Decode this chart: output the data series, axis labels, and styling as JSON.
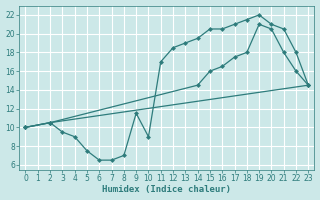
{
  "xlabel": "Humidex (Indice chaleur)",
  "bg_color": "#cce8e8",
  "line_color": "#2e7c7c",
  "grid_color": "#ffffff",
  "xlim": [
    -0.5,
    23.5
  ],
  "ylim": [
    5.5,
    23.0
  ],
  "xticks": [
    0,
    1,
    2,
    3,
    4,
    5,
    6,
    7,
    8,
    9,
    10,
    11,
    12,
    13,
    14,
    15,
    16,
    17,
    18,
    19,
    20,
    21,
    22,
    23
  ],
  "yticks": [
    6,
    8,
    10,
    12,
    14,
    16,
    18,
    20,
    22
  ],
  "line1_x": [
    0,
    2,
    3,
    4,
    5,
    6,
    7,
    8,
    9,
    10,
    11,
    12,
    13,
    14,
    15,
    16,
    17,
    18,
    19,
    20,
    21,
    22,
    23
  ],
  "line1_y": [
    10,
    10.5,
    9.5,
    9.0,
    7.5,
    6.5,
    6.5,
    7.0,
    11.5,
    9.0,
    17.0,
    18.5,
    19.0,
    19.5,
    20.5,
    20.5,
    21.0,
    21.5,
    22.0,
    21.0,
    20.5,
    18.0,
    14.5
  ],
  "line2_x": [
    0,
    2,
    23
  ],
  "line2_y": [
    10,
    10.5,
    14.5
  ],
  "line3_x": [
    0,
    2,
    14,
    15,
    16,
    17,
    18,
    19,
    20,
    21,
    22,
    23
  ],
  "line3_y": [
    10,
    10.5,
    14.5,
    16.0,
    16.5,
    17.5,
    18.0,
    21.0,
    20.5,
    18.0,
    16.0,
    14.5
  ]
}
